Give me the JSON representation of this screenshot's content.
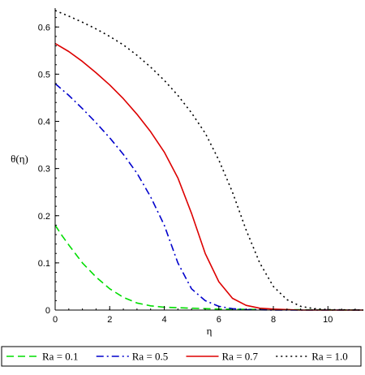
{
  "chart_data": {
    "type": "line",
    "xlabel": "η",
    "ylabel": "θ(η)",
    "xlim": [
      0,
      11.3
    ],
    "ylim": [
      0,
      0.64
    ],
    "x_ticks": [
      0,
      2,
      4,
      6,
      8,
      10
    ],
    "y_ticks": [
      0.1,
      0.2,
      0.3,
      0.4,
      0.5,
      0.6
    ],
    "grid": false,
    "legend_position": "bottom",
    "series": [
      {
        "name": "Ra = 0.1",
        "color": "#00dd00",
        "dash": "dashed",
        "x": [
          0,
          0.25,
          0.5,
          1.0,
          1.5,
          2.0,
          2.5,
          3.0,
          3.5,
          4.0,
          5.0,
          6.0,
          8.0,
          11.3
        ],
        "y": [
          0.18,
          0.158,
          0.138,
          0.1,
          0.07,
          0.045,
          0.027,
          0.015,
          0.009,
          0.006,
          0.004,
          0.002,
          0.001,
          0.0
        ]
      },
      {
        "name": "Ra = 0.5",
        "color": "#0000cc",
        "dash": "dashdot",
        "x": [
          0,
          0.5,
          1.0,
          1.5,
          2.0,
          2.5,
          3.0,
          3.5,
          4.0,
          4.5,
          5.0,
          5.5,
          6.0,
          6.5,
          7.0,
          8.0,
          11.3
        ],
        "y": [
          0.48,
          0.455,
          0.427,
          0.397,
          0.365,
          0.33,
          0.29,
          0.24,
          0.18,
          0.1,
          0.045,
          0.02,
          0.008,
          0.003,
          0.001,
          0.0,
          0.0
        ]
      },
      {
        "name": "Ra = 0.7",
        "color": "#dd0000",
        "dash": "solid",
        "x": [
          0,
          0.5,
          1.0,
          1.5,
          2.0,
          2.5,
          3.0,
          3.5,
          4.0,
          4.5,
          5.0,
          5.5,
          6.0,
          6.5,
          7.0,
          7.5,
          8.0,
          9.0,
          11.3
        ],
        "y": [
          0.565,
          0.548,
          0.527,
          0.503,
          0.477,
          0.448,
          0.415,
          0.378,
          0.335,
          0.28,
          0.205,
          0.12,
          0.06,
          0.025,
          0.01,
          0.004,
          0.002,
          0.0,
          0.0
        ]
      },
      {
        "name": "Ra = 1.0",
        "color": "#000000",
        "dash": "dotted",
        "x": [
          0,
          0.5,
          1.0,
          1.5,
          2.0,
          2.5,
          3.0,
          3.5,
          4.0,
          4.5,
          5.0,
          5.5,
          6.0,
          6.5,
          7.0,
          7.5,
          8.0,
          8.5,
          9.0,
          9.5,
          10.0,
          11.3
        ],
        "y": [
          0.635,
          0.623,
          0.61,
          0.596,
          0.58,
          0.562,
          0.54,
          0.515,
          0.487,
          0.455,
          0.418,
          0.375,
          0.318,
          0.25,
          0.17,
          0.1,
          0.05,
          0.022,
          0.008,
          0.003,
          0.001,
          0.0
        ]
      }
    ]
  }
}
